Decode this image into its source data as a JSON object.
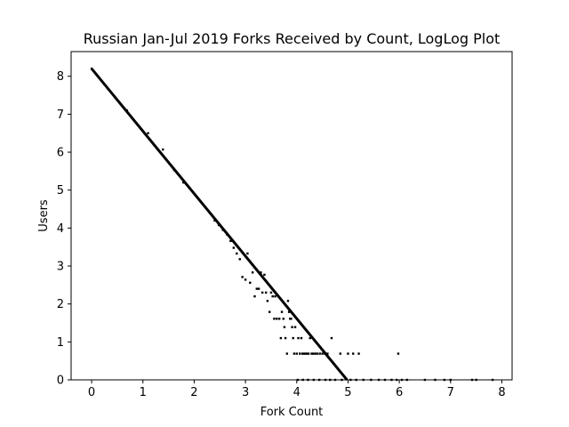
{
  "chart_data": {
    "type": "scatter",
    "title": "Russian Jan-Jul 2019 Forks Received by Count, LogLog Plot",
    "xlabel": "Fork Count",
    "ylabel": "Users",
    "xlim": [
      -0.4,
      8.2
    ],
    "ylim": [
      0,
      8.65
    ],
    "xticks": [
      "0",
      "1",
      "2",
      "3",
      "4",
      "5",
      "6",
      "7",
      "8"
    ],
    "yticks": [
      "0",
      "1",
      "2",
      "3",
      "4",
      "5",
      "6",
      "7",
      "8"
    ],
    "grid": false,
    "fit_line": {
      "from": [
        0,
        8.2
      ],
      "to": [
        4.98,
        0
      ]
    },
    "points": [
      [
        0.0,
        8.2
      ],
      [
        0.69,
        7.1
      ],
      [
        1.1,
        6.5
      ],
      [
        1.39,
        6.07
      ],
      [
        1.61,
        5.53
      ],
      [
        1.79,
        5.2
      ],
      [
        2.4,
        4.2
      ],
      [
        2.48,
        4.08
      ],
      [
        2.56,
        3.95
      ],
      [
        2.64,
        3.83
      ],
      [
        2.71,
        3.66
      ],
      [
        2.77,
        3.48
      ],
      [
        2.83,
        3.33
      ],
      [
        2.89,
        3.18
      ],
      [
        2.94,
        2.71
      ],
      [
        3.0,
        2.64
      ],
      [
        3.04,
        3.33
      ],
      [
        3.09,
        2.56
      ],
      [
        3.14,
        2.83
      ],
      [
        3.18,
        2.2
      ],
      [
        3.22,
        2.4
      ],
      [
        3.26,
        2.4
      ],
      [
        3.3,
        2.83
      ],
      [
        3.33,
        2.3
      ],
      [
        3.37,
        2.77
      ],
      [
        3.4,
        2.3
      ],
      [
        3.43,
        2.08
      ],
      [
        3.47,
        1.79
      ],
      [
        3.5,
        2.3
      ],
      [
        3.53,
        2.2
      ],
      [
        3.56,
        1.61
      ],
      [
        3.58,
        2.2
      ],
      [
        3.61,
        1.61
      ],
      [
        3.64,
        2.2
      ],
      [
        3.66,
        1.61
      ],
      [
        3.69,
        1.1
      ],
      [
        3.71,
        1.79
      ],
      [
        3.74,
        1.61
      ],
      [
        3.76,
        1.39
      ],
      [
        3.78,
        1.1
      ],
      [
        3.81,
        0.69
      ],
      [
        3.83,
        2.08
      ],
      [
        3.85,
        1.79
      ],
      [
        3.87,
        1.61
      ],
      [
        3.89,
        1.61
      ],
      [
        3.91,
        1.39
      ],
      [
        3.93,
        1.1
      ],
      [
        3.95,
        0.69
      ],
      [
        3.97,
        1.39
      ],
      [
        4.0,
        0.69
      ],
      [
        4.03,
        1.1
      ],
      [
        4.06,
        0.69
      ],
      [
        4.09,
        1.1
      ],
      [
        4.11,
        0.69
      ],
      [
        4.14,
        0.69
      ],
      [
        4.17,
        0.69
      ],
      [
        4.2,
        0.69
      ],
      [
        4.23,
        0.69
      ],
      [
        4.26,
        1.1
      ],
      [
        4.29,
        0.69
      ],
      [
        4.32,
        0.69
      ],
      [
        4.36,
        0.69
      ],
      [
        4.4,
        0.69
      ],
      [
        4.45,
        0.69
      ],
      [
        4.5,
        0.69
      ],
      [
        4.55,
        0.69
      ],
      [
        4.6,
        0.69
      ],
      [
        4.68,
        1.1
      ],
      [
        4.85,
        0.69
      ],
      [
        5.0,
        0.69
      ],
      [
        5.1,
        0.69
      ],
      [
        5.21,
        0.69
      ],
      [
        5.98,
        0.69
      ],
      [
        4.02,
        0
      ],
      [
        4.12,
        0
      ],
      [
        4.22,
        0
      ],
      [
        4.33,
        0
      ],
      [
        4.44,
        0
      ],
      [
        4.56,
        0
      ],
      [
        4.65,
        0
      ],
      [
        4.75,
        0
      ],
      [
        4.88,
        0
      ],
      [
        5.05,
        0
      ],
      [
        5.16,
        0
      ],
      [
        5.3,
        0
      ],
      [
        5.45,
        0
      ],
      [
        5.6,
        0
      ],
      [
        5.72,
        0
      ],
      [
        5.85,
        0
      ],
      [
        5.95,
        0
      ],
      [
        6.05,
        0
      ],
      [
        6.15,
        0
      ],
      [
        6.5,
        0
      ],
      [
        6.7,
        0
      ],
      [
        6.88,
        0
      ],
      [
        7.0,
        0
      ],
      [
        7.42,
        0
      ],
      [
        7.5,
        0
      ],
      [
        7.82,
        0
      ]
    ]
  }
}
